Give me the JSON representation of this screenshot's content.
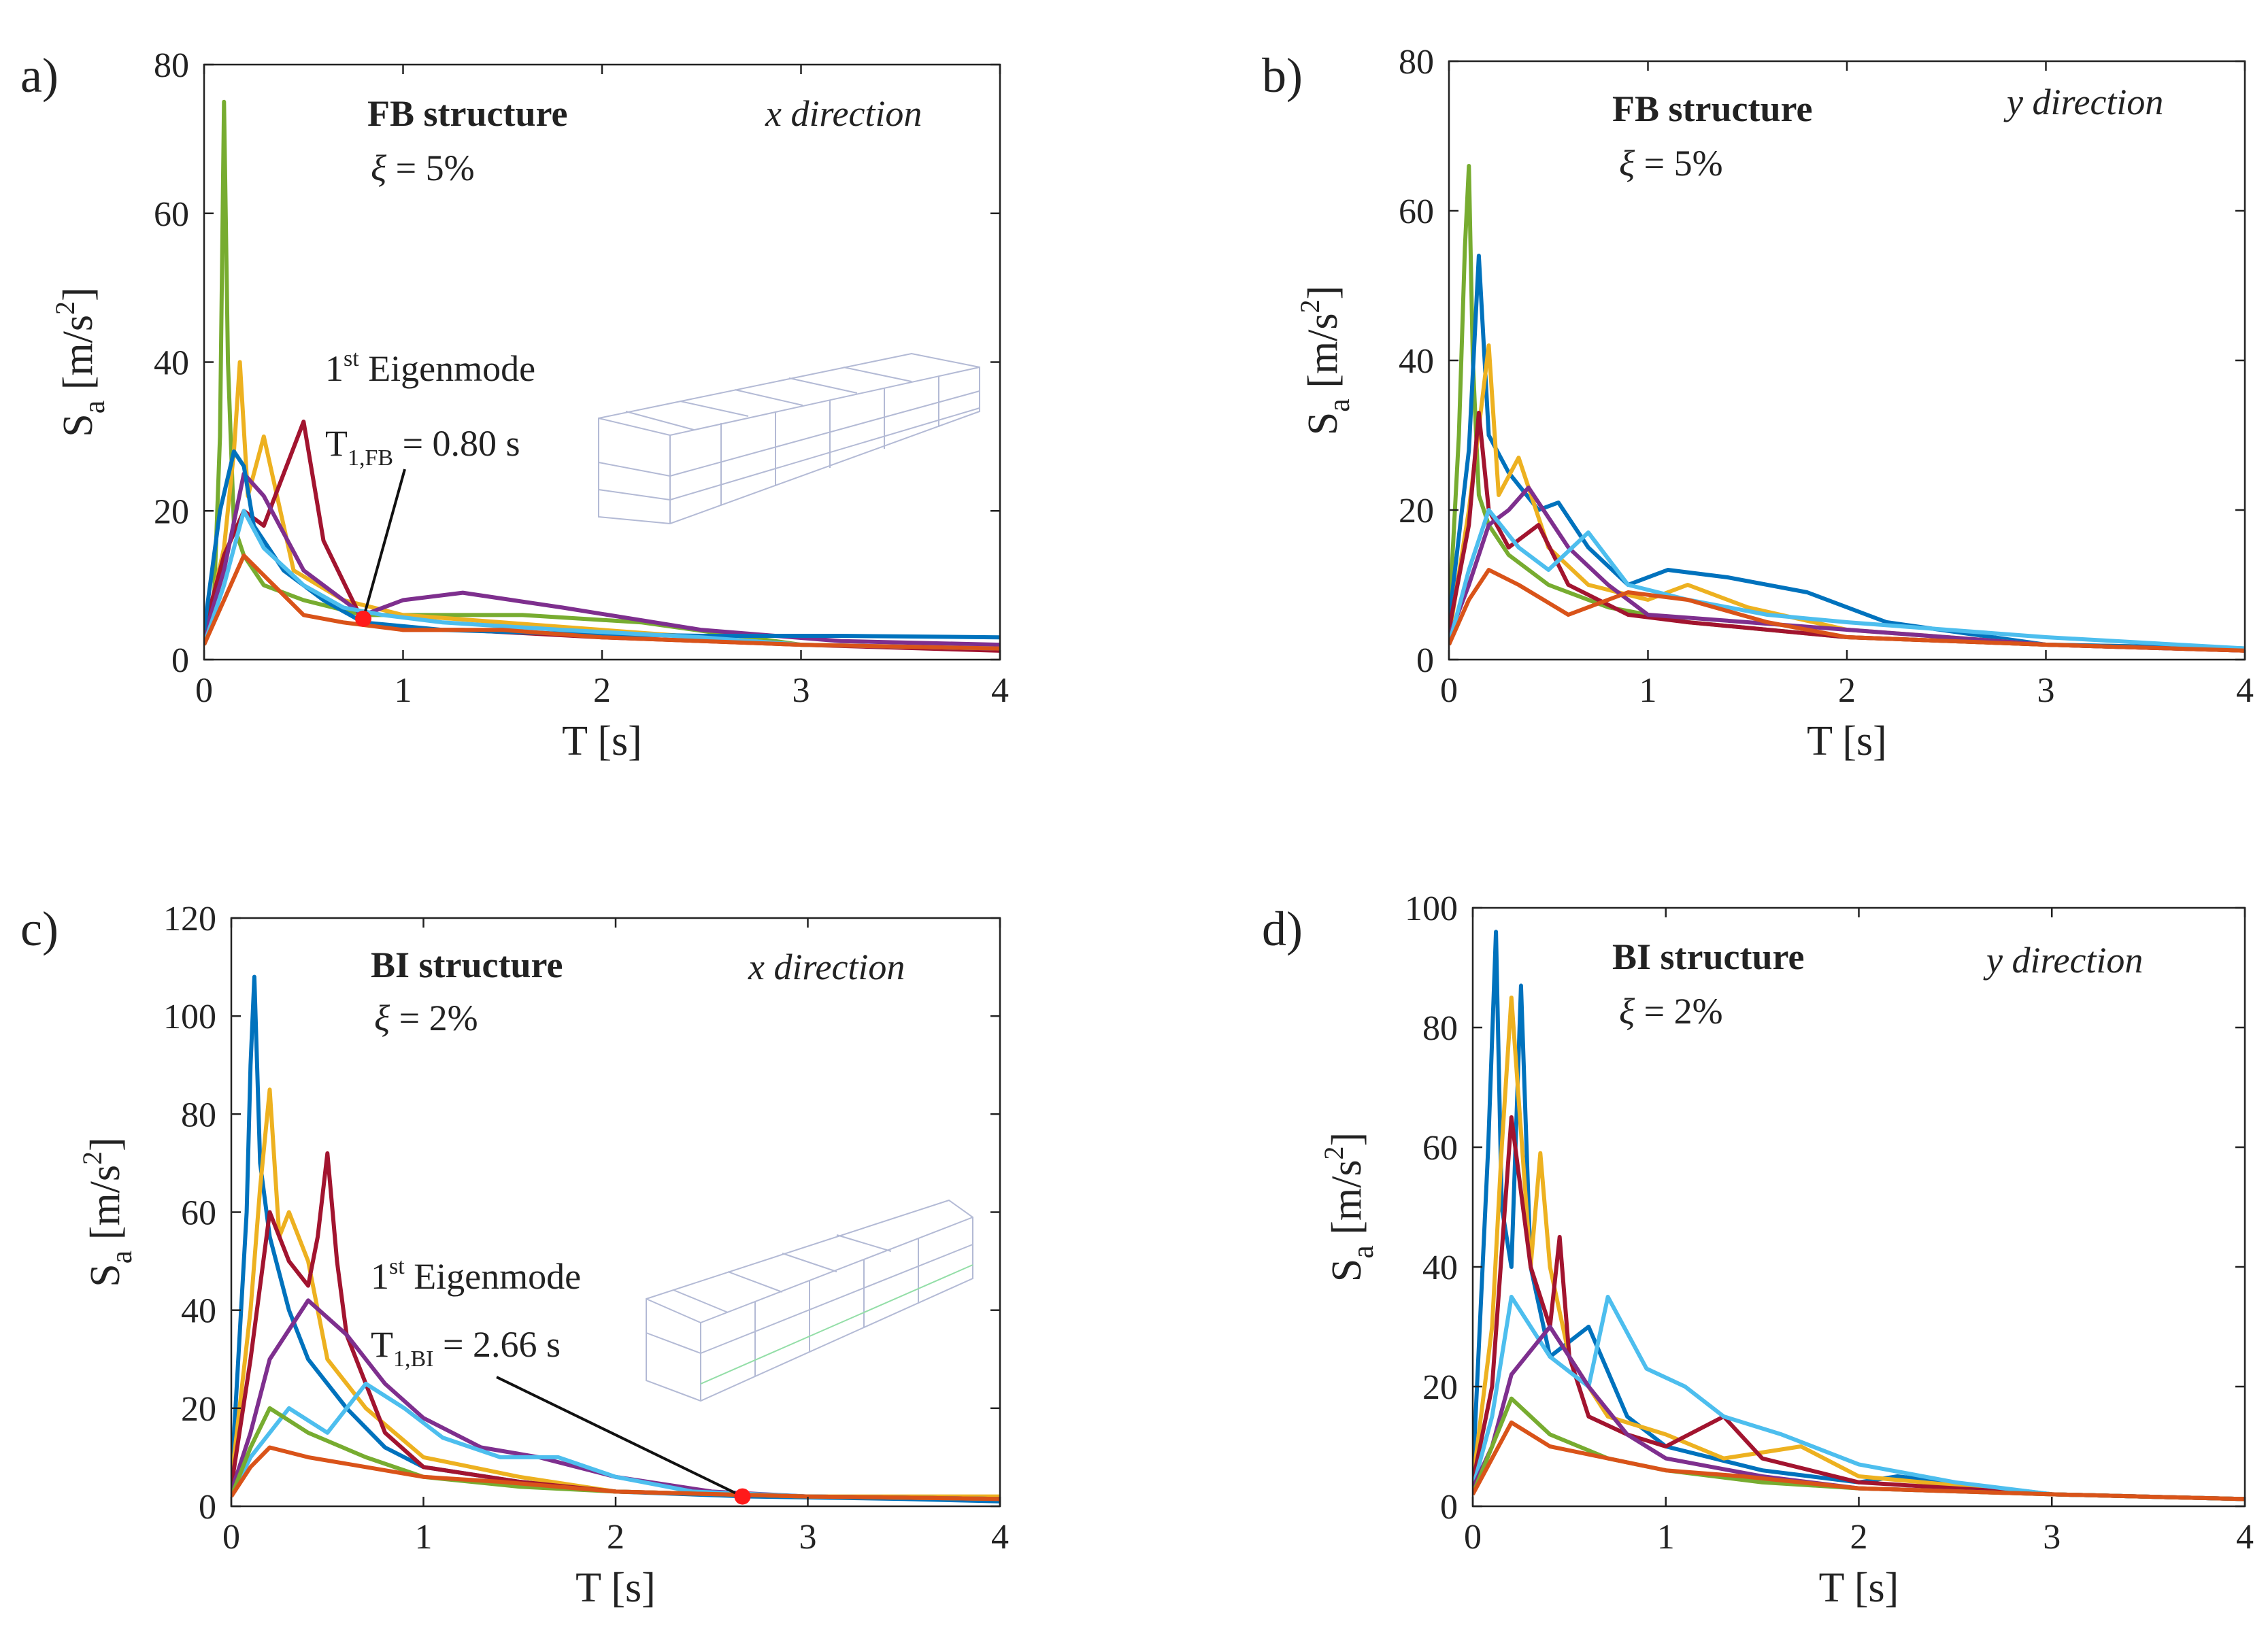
{
  "figure": {
    "panels": [
      {
        "id": "a",
        "label": "a)",
        "structure": "FB structure",
        "direction": "x direction",
        "damping_symbol": "ξ",
        "damping_text": " = 5%",
        "annotation": {
          "title_sup": "st",
          "title_pre": "1",
          "title_post": " Eigenmode",
          "period_main": "T",
          "period_sub": "1,FB",
          "period_value": " = 0.80 s"
        }
      },
      {
        "id": "b",
        "label": "b)",
        "structure": "FB structure",
        "direction": "y direction",
        "damping_symbol": "ξ",
        "damping_text": " = 5%"
      },
      {
        "id": "c",
        "label": "c)",
        "structure": "BI structure",
        "direction": "x direction",
        "damping_symbol": "ξ",
        "damping_text": " = 2%",
        "annotation": {
          "title_sup": "st",
          "title_pre": "1",
          "title_post": " Eigenmode",
          "period_main": "T",
          "period_sub": "1,BI",
          "period_value": " = 2.66 s"
        }
      },
      {
        "id": "d",
        "label": "d)",
        "structure": "BI structure",
        "direction": "y direction",
        "damping_symbol": "ξ",
        "damping_text": " = 2%"
      }
    ],
    "axis_text": {
      "ylabel_main": "S",
      "ylabel_sub": "a",
      "ylabel_units": " [m/s",
      "ylabel_exp": "2",
      "ylabel_close": "]",
      "xlabel": "T [s]"
    }
  },
  "chart_data": [
    {
      "type": "line",
      "panel": "a",
      "title": "FB structure",
      "xlabel": "T [s]",
      "ylabel": "Sa [m/s2]",
      "xlim": [
        0,
        4
      ],
      "ylim": [
        0,
        80
      ],
      "xticks": [
        0,
        1,
        2,
        3,
        4
      ],
      "yticks": [
        0,
        20,
        40,
        60,
        80
      ],
      "highlight_point": {
        "x": 0.8,
        "y": 5.5
      },
      "series": [
        {
          "name": "rec-green",
          "color": "#77ac30",
          "x": [
            0,
            0.05,
            0.08,
            0.1,
            0.12,
            0.15,
            0.2,
            0.3,
            0.5,
            0.8,
            1.2,
            1.6,
            2.2,
            3,
            4
          ],
          "y": [
            2,
            8,
            30,
            75,
            40,
            18,
            14,
            10,
            8,
            6,
            6,
            6,
            5,
            2,
            1.5
          ]
        },
        {
          "name": "rec-yellow",
          "color": "#edb120",
          "x": [
            0,
            0.1,
            0.15,
            0.18,
            0.22,
            0.3,
            0.45,
            0.7,
            1.0,
            1.5,
            2.0,
            3,
            4
          ],
          "y": [
            3,
            15,
            28,
            40,
            22,
            30,
            12,
            8,
            6,
            5,
            4,
            2,
            1.5
          ]
        },
        {
          "name": "rec-crimson",
          "color": "#a2142f",
          "x": [
            0,
            0.1,
            0.2,
            0.3,
            0.4,
            0.5,
            0.6,
            0.8,
            1.0,
            1.3,
            2.0,
            3,
            4
          ],
          "y": [
            4,
            14,
            20,
            18,
            25,
            32,
            16,
            5,
            4,
            4,
            3,
            2,
            1.2
          ]
        },
        {
          "name": "rec-purple",
          "color": "#7e2f8e",
          "x": [
            0,
            0.1,
            0.2,
            0.3,
            0.5,
            0.8,
            1.0,
            1.3,
            1.8,
            2.5,
            3.2,
            4
          ],
          "y": [
            3,
            12,
            25,
            22,
            12,
            6,
            8,
            9,
            7,
            4,
            2.5,
            2
          ]
        },
        {
          "name": "rec-blue",
          "color": "#0072bd",
          "x": [
            0,
            0.08,
            0.15,
            0.2,
            0.25,
            0.4,
            0.6,
            0.8,
            1.2,
            1.8,
            2.5,
            3.2,
            4
          ],
          "y": [
            4,
            20,
            28,
            26,
            18,
            12,
            8,
            5,
            4,
            3.5,
            3.2,
            3.2,
            3
          ]
        },
        {
          "name": "rec-cyan",
          "color": "#4dbeee",
          "x": [
            0,
            0.1,
            0.2,
            0.3,
            0.5,
            0.7,
            0.9,
            1.2,
            1.8,
            2.5,
            3,
            4
          ],
          "y": [
            2,
            10,
            20,
            15,
            10,
            7,
            6,
            5,
            4,
            3,
            2,
            1.5
          ]
        },
        {
          "name": "rec-orange",
          "color": "#d95319",
          "x": [
            0,
            0.1,
            0.2,
            0.35,
            0.5,
            0.7,
            1.0,
            1.5,
            2.0,
            3,
            4
          ],
          "y": [
            2,
            8,
            14,
            10,
            6,
            5,
            4,
            4,
            3,
            2,
            1.5
          ]
        }
      ]
    },
    {
      "type": "line",
      "panel": "b",
      "title": "FB structure",
      "xlabel": "T [s]",
      "ylabel": "Sa [m/s2]",
      "xlim": [
        0,
        4
      ],
      "ylim": [
        0,
        80
      ],
      "xticks": [
        0,
        1,
        2,
        3,
        4
      ],
      "yticks": [
        0,
        20,
        40,
        60,
        80
      ],
      "series": [
        {
          "name": "rec-green",
          "color": "#77ac30",
          "x": [
            0,
            0.05,
            0.08,
            0.1,
            0.12,
            0.15,
            0.2,
            0.3,
            0.5,
            0.8,
            1.2,
            2,
            3,
            4
          ],
          "y": [
            5,
            30,
            55,
            66,
            40,
            22,
            18,
            14,
            10,
            7,
            5,
            3,
            2,
            1.5
          ]
        },
        {
          "name": "rec-blue",
          "color": "#0072bd",
          "x": [
            0,
            0.1,
            0.15,
            0.2,
            0.3,
            0.45,
            0.55,
            0.7,
            0.9,
            1.1,
            1.4,
            1.8,
            2.2,
            3,
            4
          ],
          "y": [
            5,
            28,
            54,
            30,
            25,
            20,
            21,
            15,
            10,
            12,
            11,
            9,
            5,
            2,
            1.5
          ]
        },
        {
          "name": "rec-yellow",
          "color": "#edb120",
          "x": [
            0,
            0.1,
            0.2,
            0.25,
            0.35,
            0.5,
            0.7,
            1.0,
            1.2,
            1.5,
            2,
            3,
            4
          ],
          "y": [
            3,
            20,
            42,
            22,
            27,
            15,
            10,
            8,
            10,
            7,
            4,
            2,
            1.2
          ]
        },
        {
          "name": "rec-crimson",
          "color": "#a2142f",
          "x": [
            0,
            0.1,
            0.15,
            0.2,
            0.3,
            0.45,
            0.6,
            0.9,
            1.2,
            2,
            3,
            4
          ],
          "y": [
            4,
            18,
            33,
            20,
            15,
            18,
            10,
            6,
            5,
            3,
            2,
            1.2
          ]
        },
        {
          "name": "rec-purple",
          "color": "#7e2f8e",
          "x": [
            0,
            0.1,
            0.2,
            0.3,
            0.4,
            0.6,
            0.8,
            1.0,
            1.5,
            2,
            3,
            4
          ],
          "y": [
            3,
            10,
            18,
            20,
            23,
            15,
            10,
            6,
            5,
            4,
            2,
            1.2
          ]
        },
        {
          "name": "rec-cyan",
          "color": "#4dbeee",
          "x": [
            0,
            0.1,
            0.2,
            0.35,
            0.5,
            0.7,
            0.9,
            1.2,
            1.6,
            2,
            2.5,
            3,
            4
          ],
          "y": [
            2,
            12,
            20,
            15,
            12,
            17,
            10,
            8,
            6,
            5,
            4,
            3,
            1.5
          ]
        },
        {
          "name": "rec-orange",
          "color": "#d95319",
          "x": [
            0,
            0.1,
            0.2,
            0.35,
            0.6,
            0.9,
            1.2,
            1.6,
            2,
            3,
            4
          ],
          "y": [
            2,
            8,
            12,
            10,
            6,
            9,
            8,
            5,
            3,
            2,
            1.2
          ]
        }
      ]
    },
    {
      "type": "line",
      "panel": "c",
      "title": "BI structure",
      "xlabel": "T [s]",
      "ylabel": "Sa [m/s2]",
      "xlim": [
        0,
        4
      ],
      "ylim": [
        0,
        120
      ],
      "xticks": [
        0,
        1,
        2,
        3,
        4
      ],
      "yticks": [
        0,
        20,
        40,
        60,
        80,
        100,
        120
      ],
      "highlight_point": {
        "x": 2.66,
        "y": 2
      },
      "series": [
        {
          "name": "rec-blue",
          "color": "#0072bd",
          "x": [
            0,
            0.08,
            0.1,
            0.12,
            0.15,
            0.2,
            0.3,
            0.4,
            0.6,
            0.8,
            1.0,
            1.5,
            2,
            2.7,
            3.5,
            4
          ],
          "y": [
            5,
            60,
            90,
            108,
            70,
            55,
            40,
            30,
            20,
            12,
            8,
            5,
            3,
            2,
            1.5,
            1
          ]
        },
        {
          "name": "rec-yellow",
          "color": "#edb120",
          "x": [
            0,
            0.1,
            0.15,
            0.2,
            0.25,
            0.3,
            0.4,
            0.5,
            0.7,
            1.0,
            1.5,
            2,
            3,
            4
          ],
          "y": [
            5,
            40,
            65,
            85,
            55,
            60,
            50,
            30,
            20,
            10,
            6,
            3,
            2,
            2
          ]
        },
        {
          "name": "rec-crimson",
          "color": "#a2142f",
          "x": [
            0,
            0.1,
            0.2,
            0.3,
            0.4,
            0.45,
            0.5,
            0.55,
            0.6,
            0.8,
            1.0,
            1.5,
            2,
            3,
            4
          ],
          "y": [
            4,
            30,
            60,
            50,
            45,
            55,
            72,
            50,
            35,
            15,
            8,
            5,
            3,
            2,
            1.5
          ]
        },
        {
          "name": "rec-purple",
          "color": "#7e2f8e",
          "x": [
            0,
            0.1,
            0.2,
            0.4,
            0.6,
            0.8,
            1.0,
            1.3,
            1.6,
            2,
            2.5,
            3,
            4
          ],
          "y": [
            3,
            15,
            30,
            42,
            35,
            25,
            18,
            12,
            10,
            6,
            3,
            2,
            1.5
          ]
        },
        {
          "name": "rec-cyan",
          "color": "#4dbeee",
          "x": [
            0,
            0.1,
            0.3,
            0.5,
            0.7,
            0.9,
            1.1,
            1.4,
            1.7,
            2.0,
            2.4,
            3,
            4
          ],
          "y": [
            2,
            10,
            20,
            15,
            25,
            20,
            14,
            10,
            10,
            6,
            3,
            2,
            1.5
          ]
        },
        {
          "name": "rec-green",
          "color": "#77ac30",
          "x": [
            0,
            0.1,
            0.2,
            0.4,
            0.7,
            1.0,
            1.5,
            2,
            3,
            4
          ],
          "y": [
            2,
            12,
            20,
            15,
            10,
            6,
            4,
            3,
            2,
            1.5
          ]
        },
        {
          "name": "rec-orange",
          "color": "#d95319",
          "x": [
            0,
            0.1,
            0.2,
            0.4,
            0.7,
            1.0,
            1.4,
            2,
            3,
            4
          ],
          "y": [
            2,
            8,
            12,
            10,
            8,
            6,
            5,
            3,
            2,
            1.5
          ]
        }
      ]
    },
    {
      "type": "line",
      "panel": "d",
      "title": "BI structure",
      "xlabel": "T [s]",
      "ylabel": "Sa [m/s2]",
      "xlim": [
        0,
        4
      ],
      "ylim": [
        0,
        100
      ],
      "xticks": [
        0,
        1,
        2,
        3,
        4
      ],
      "yticks": [
        0,
        20,
        40,
        60,
        80,
        100
      ],
      "series": [
        {
          "name": "rec-blue",
          "color": "#0072bd",
          "x": [
            0,
            0.08,
            0.12,
            0.15,
            0.2,
            0.25,
            0.3,
            0.4,
            0.6,
            0.8,
            1.0,
            1.5,
            2,
            2.2,
            3,
            4
          ],
          "y": [
            5,
            60,
            96,
            50,
            40,
            87,
            40,
            25,
            30,
            15,
            10,
            6,
            4,
            5,
            2,
            1.2
          ]
        },
        {
          "name": "rec-yellow",
          "color": "#edb120",
          "x": [
            0,
            0.1,
            0.15,
            0.2,
            0.3,
            0.35,
            0.4,
            0.5,
            0.7,
            1.0,
            1.3,
            1.7,
            2,
            3,
            4
          ],
          "y": [
            4,
            30,
            60,
            85,
            40,
            59,
            40,
            25,
            15,
            12,
            8,
            10,
            5,
            2,
            1.2
          ]
        },
        {
          "name": "rec-crimson",
          "color": "#a2142f",
          "x": [
            0,
            0.1,
            0.2,
            0.3,
            0.4,
            0.45,
            0.5,
            0.6,
            0.8,
            1.0,
            1.3,
            1.5,
            2,
            3,
            4
          ],
          "y": [
            4,
            20,
            65,
            40,
            30,
            45,
            25,
            15,
            12,
            10,
            15,
            8,
            4,
            2,
            1.2
          ]
        },
        {
          "name": "rec-cyan",
          "color": "#4dbeee",
          "x": [
            0,
            0.1,
            0.2,
            0.4,
            0.6,
            0.7,
            0.9,
            1.1,
            1.3,
            1.6,
            2,
            2.5,
            3,
            4
          ],
          "y": [
            3,
            15,
            35,
            25,
            20,
            35,
            23,
            20,
            15,
            12,
            7,
            4,
            2,
            1.2
          ]
        },
        {
          "name": "rec-purple",
          "color": "#7e2f8e",
          "x": [
            0,
            0.1,
            0.2,
            0.4,
            0.6,
            0.8,
            1.0,
            1.5,
            2,
            3,
            4
          ],
          "y": [
            3,
            10,
            22,
            30,
            20,
            12,
            8,
            5,
            3,
            2,
            1.2
          ]
        },
        {
          "name": "rec-green",
          "color": "#77ac30",
          "x": [
            0,
            0.1,
            0.2,
            0.4,
            0.7,
            1.0,
            1.5,
            2,
            3,
            4
          ],
          "y": [
            2,
            10,
            18,
            12,
            8,
            6,
            4,
            3,
            2,
            1.2
          ]
        },
        {
          "name": "rec-orange",
          "color": "#d95319",
          "x": [
            0,
            0.1,
            0.2,
            0.4,
            0.7,
            1.0,
            1.4,
            2,
            3,
            4
          ],
          "y": [
            2,
            8,
            14,
            10,
            8,
            6,
            5,
            3,
            2,
            1.2
          ]
        }
      ]
    }
  ]
}
